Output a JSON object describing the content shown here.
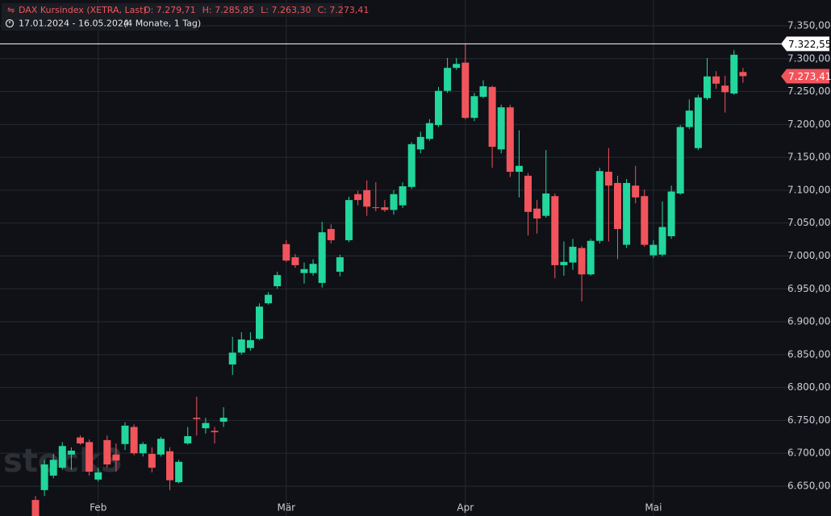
{
  "chart_data": {
    "type": "candlestick",
    "title": "DAX Kursindex (XETRA, Last)",
    "ohlc_labels": [
      "O: 7.279,71",
      "H: 7.285,85",
      "L: 7.263,30",
      "C: 7.273,41"
    ],
    "period": "17.01.2024 - 16.05.2024",
    "period_note": "(4 Monate, 1 Tag)",
    "watermark": "stock3",
    "up_color": "#22d69c",
    "down_color": "#f2545b",
    "categories": [
      null,
      null,
      null,
      null,
      null,
      null,
      null,
      "Feb",
      null,
      null,
      null,
      null,
      null,
      null,
      null,
      null,
      null,
      null,
      null,
      null,
      null,
      null,
      null,
      null,
      null,
      null,
      null,
      null,
      "Mär",
      null,
      null,
      null,
      null,
      null,
      null,
      null,
      null,
      null,
      null,
      null,
      null,
      null,
      null,
      null,
      null,
      null,
      null,
      null,
      "Apr",
      null,
      null,
      null,
      null,
      null,
      null,
      null,
      null,
      null,
      null,
      null,
      null,
      null,
      null,
      null,
      null,
      null,
      null,
      null,
      null,
      "Mai",
      null,
      null,
      null,
      null,
      null,
      null,
      null,
      null,
      null,
      null
    ],
    "open": [
      6629,
      6644,
      6666,
      6678,
      6698,
      6724,
      6717,
      6660,
      6720,
      6698,
      6714,
      6740,
      6700,
      6699,
      6698,
      6703,
      6656,
      6715,
      6754,
      6738,
      6734,
      6748,
      6835,
      6853,
      6860,
      6874,
      6928,
      6954,
      7018,
      6998,
      6974,
      6974,
      6959,
      7041,
      6976,
      7024,
      7094,
      7100,
      7074,
      7074,
      7070,
      7077,
      7105,
      7162,
      7178,
      7199,
      7251,
      7286,
      7294,
      7210,
      7242,
      7257,
      7162,
      7226,
      7128,
      7122,
      7072,
      7061,
      7091,
      6986,
      6990,
      7012,
      6972,
      7023,
      7128,
      7111,
      7017,
      7107,
      7091,
      7001,
      7002,
      7030,
      7095,
      7196,
      7164,
      7240,
      7273,
      7259,
      7247,
      7279.71
    ],
    "high": [
      6635,
      6690,
      6699,
      6717,
      6709,
      6727,
      6721,
      6678,
      6727,
      6715,
      6747,
      6744,
      6717,
      6709,
      6725,
      6709,
      6690,
      6740,
      6786,
      6754,
      6740,
      6770,
      6877,
      6884,
      6884,
      6928,
      6945,
      6976,
      7024,
      7003,
      6990,
      6995,
      7052,
      7048,
      7002,
      7090,
      7099,
      7115,
      7112,
      7085,
      7100,
      7112,
      7173,
      7189,
      7208,
      7257,
      7301,
      7301,
      7322.55,
      7248,
      7267,
      7259,
      7230,
      7230,
      7191,
      7126,
      7085,
      7161,
      7095,
      7022,
      7026,
      7015,
      7026,
      7134,
      7164,
      7122,
      7117,
      7137,
      7101,
      7024,
      7083,
      7107,
      7199,
      7238,
      7245,
      7301,
      7281,
      7274,
      7313,
      7285.85
    ],
    "low": [
      6590,
      6635,
      6662,
      6675,
      6675,
      6713,
      6666,
      6657,
      6678,
      6672,
      6705,
      6697,
      6695,
      6671,
      6695,
      6644,
      6654,
      6713,
      6727,
      6730,
      6715,
      6740,
      6819,
      6850,
      6856,
      6872,
      6926,
      6950,
      6991,
      6982,
      6958,
      6970,
      6952,
      7019,
      6969,
      7021,
      7077,
      7061,
      7068,
      7067,
      7063,
      7073,
      7102,
      7156,
      7175,
      7196,
      7248,
      7283,
      7208,
      7205,
      7240,
      7134,
      7156,
      7120,
      7089,
      7031,
      7034,
      7058,
      6966,
      6970,
      6979,
      6931,
      6970,
      7019,
      7022,
      6995,
      7012,
      7080,
      7014,
      6997,
      6999,
      7026,
      7093,
      7193,
      7161,
      7237,
      7254,
      7218,
      7245,
      7263.3
    ],
    "close": [
      6600,
      6683,
      6690,
      6711,
      6704,
      6715,
      6672,
      6671,
      6683,
      6689,
      6742,
      6700,
      6714,
      6678,
      6722,
      6659,
      6687,
      6726,
      6752,
      6746,
      6732,
      6754,
      6853,
      6873,
      6872,
      6923,
      6941,
      6971,
      6993,
      6986,
      6980,
      6988,
      7036,
      7024,
      6998,
      7085,
      7085,
      7075,
      7073,
      7070,
      7094,
      7106,
      7170,
      7181,
      7202,
      7251,
      7286,
      7292,
      7210,
      7243,
      7258,
      7166,
      7226,
      7128,
      7137,
      7067,
      7057,
      7095,
      6986,
      6991,
      7014,
      6972,
      7023,
      7129,
      7107,
      7041,
      7111,
      7089,
      7017,
      7017,
      7044,
      7098,
      7196,
      7221,
      7241,
      7273,
      7262,
      7249,
      7306,
      7273.41
    ],
    "ylim": [
      6604.6,
      7389.2
    ],
    "yticks": [
      {
        "value": 6650,
        "label": "6.650,00"
      },
      {
        "value": 6700,
        "label": "6.700,00"
      },
      {
        "value": 6750,
        "label": "6.750,00"
      },
      {
        "value": 6800,
        "label": "6.800,00"
      },
      {
        "value": 6850,
        "label": "6.850,00"
      },
      {
        "value": 6900,
        "label": "6.900,00"
      },
      {
        "value": 6950,
        "label": "6.950,00"
      },
      {
        "value": 7000,
        "label": "7.000,00"
      },
      {
        "value": 7050,
        "label": "7.050,00"
      },
      {
        "value": 7100,
        "label": "7.100,00"
      },
      {
        "value": 7150,
        "label": "7.150,00"
      },
      {
        "value": 7200,
        "label": "7.200,00"
      },
      {
        "value": 7250,
        "label": "7.250,00"
      },
      {
        "value": 7300,
        "label": "7.300,00"
      },
      {
        "value": 7350,
        "label": "7.350,00"
      }
    ],
    "price_line": {
      "value": 7322.55,
      "label": "7.322,55",
      "color": "#ffffff"
    },
    "last_price": {
      "value": 7273.41,
      "label": "7.273,41",
      "color": "#f2545b"
    },
    "grid": true
  }
}
